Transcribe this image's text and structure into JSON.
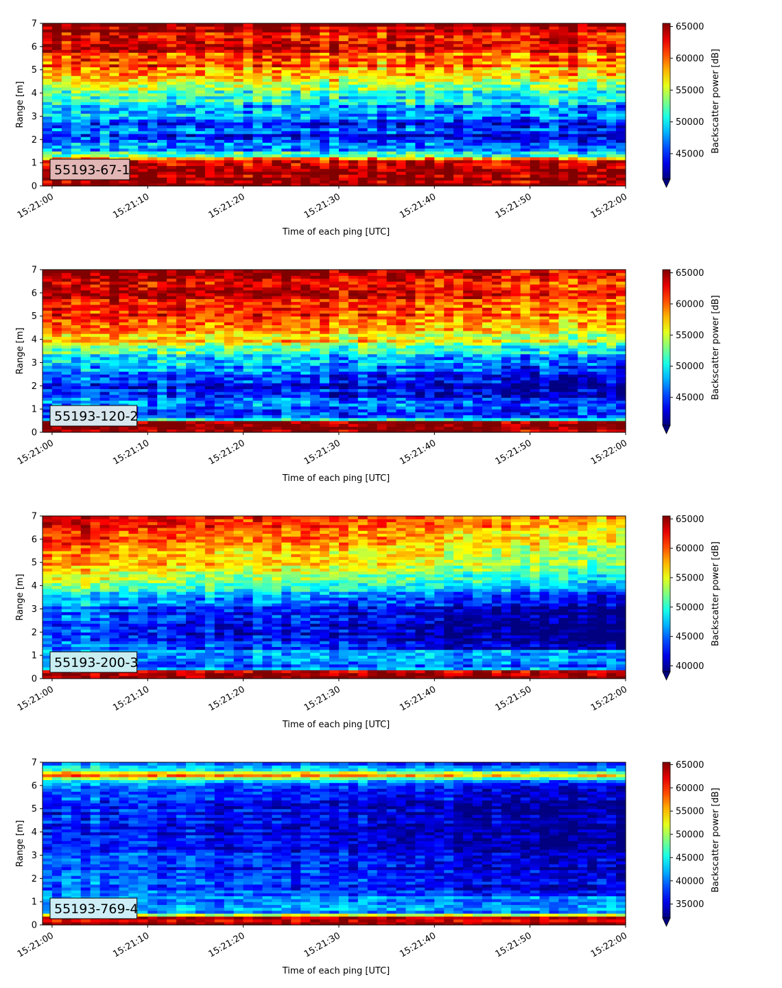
{
  "chart_data": [
    {
      "type": "heatmap",
      "label": "55193-67-1",
      "xlabel": "Time of each ping [UTC]",
      "ylabel": "Range [m]",
      "colorbar_label": "Backscatter power [dB]",
      "colormap": "jet",
      "x_range": [
        "15:20:59",
        "15:22:00"
      ],
      "x_ticks": [
        "15:21:00",
        "15:21:10",
        "15:21:20",
        "15:21:30",
        "15:21:40",
        "15:21:50",
        "15:22:00"
      ],
      "y_range": [
        0,
        7
      ],
      "y_ticks": [
        0,
        1,
        2,
        3,
        4,
        5,
        6,
        7
      ],
      "color_range": [
        41000,
        65500
      ],
      "colorbar_ticks": [
        45000,
        50000,
        55000,
        60000,
        65000
      ],
      "colorbar_extend": "min",
      "label_box_color": "#e3b6b6",
      "profile": [
        {
          "range": 0.0,
          "value": 65500
        },
        {
          "range": 0.25,
          "value": 65500
        },
        {
          "range": 0.5,
          "value": 64500
        },
        {
          "range": 0.8,
          "value": 65500
        },
        {
          "range": 1.1,
          "value": 64000
        },
        {
          "range": 1.3,
          "value": 52000
        },
        {
          "range": 2.0,
          "value": 45000
        },
        {
          "range": 2.7,
          "value": 46500
        },
        {
          "range": 3.5,
          "value": 49500
        },
        {
          "range": 4.3,
          "value": 55000
        },
        {
          "range": 5.0,
          "value": 60000
        },
        {
          "range": 6.0,
          "value": 63000
        },
        {
          "range": 7.0,
          "value": 65000
        }
      ],
      "trend_db_per_min": -1500,
      "noise_db": 3800
    },
    {
      "type": "heatmap",
      "label": "55193-120-2",
      "xlabel": "Time of each ping [UTC]",
      "ylabel": "Range [m]",
      "colorbar_label": "Backscatter power [dB]",
      "colormap": "jet",
      "x_range": [
        "15:20:59",
        "15:22:00"
      ],
      "x_ticks": [
        "15:21:00",
        "15:21:10",
        "15:21:20",
        "15:21:30",
        "15:21:40",
        "15:21:50",
        "15:22:00"
      ],
      "y_range": [
        0,
        7
      ],
      "y_ticks": [
        0,
        1,
        2,
        3,
        4,
        5,
        6,
        7
      ],
      "color_range": [
        40500,
        65500
      ],
      "colorbar_ticks": [
        45000,
        50000,
        55000,
        60000,
        65000
      ],
      "colorbar_extend": "min",
      "label_box_color": "#d8e6ee",
      "profile": [
        {
          "range": 0.0,
          "value": 65500
        },
        {
          "range": 0.45,
          "value": 65000
        },
        {
          "range": 0.6,
          "value": 44000
        },
        {
          "range": 1.2,
          "value": 47000
        },
        {
          "range": 2.0,
          "value": 44500
        },
        {
          "range": 3.0,
          "value": 49000
        },
        {
          "range": 4.0,
          "value": 58000
        },
        {
          "range": 5.0,
          "value": 62000
        },
        {
          "range": 6.0,
          "value": 64000
        },
        {
          "range": 7.0,
          "value": 65500
        }
      ],
      "trend_db_per_min": -3500,
      "noise_db": 3600
    },
    {
      "type": "heatmap",
      "label": "55193-200-3",
      "xlabel": "Time of each ping [UTC]",
      "ylabel": "Range [m]",
      "colorbar_label": "Backscatter power [dB]",
      "colormap": "jet",
      "x_range": [
        "15:20:59",
        "15:22:00"
      ],
      "x_ticks": [
        "15:21:00",
        "15:21:10",
        "15:21:20",
        "15:21:30",
        "15:21:40",
        "15:21:50",
        "15:22:00"
      ],
      "y_range": [
        0,
        7
      ],
      "y_ticks": [
        0,
        1,
        2,
        3,
        4,
        5,
        6,
        7
      ],
      "color_range": [
        39000,
        65500
      ],
      "colorbar_ticks": [
        40000,
        45000,
        50000,
        55000,
        60000,
        65000
      ],
      "colorbar_extend": "min",
      "label_box_color": "#c8eef2",
      "profile": [
        {
          "range": 0.0,
          "value": 65500
        },
        {
          "range": 0.3,
          "value": 64500
        },
        {
          "range": 0.45,
          "value": 45000
        },
        {
          "range": 1.0,
          "value": 47000
        },
        {
          "range": 2.0,
          "value": 43500
        },
        {
          "range": 3.0,
          "value": 45500
        },
        {
          "range": 4.0,
          "value": 53000
        },
        {
          "range": 5.0,
          "value": 59000
        },
        {
          "range": 6.0,
          "value": 61000
        },
        {
          "range": 7.0,
          "value": 65000
        }
      ],
      "trend_db_per_min": -6500,
      "noise_db": 3200
    },
    {
      "type": "heatmap",
      "label": "55193-769-4",
      "xlabel": "Time of each ping [UTC]",
      "ylabel": "Range [m]",
      "colorbar_label": "Backscatter power [dB]",
      "colormap": "jet",
      "x_range": [
        "15:20:59",
        "15:22:00"
      ],
      "x_ticks": [
        "15:21:00",
        "15:21:10",
        "15:21:20",
        "15:21:30",
        "15:21:40",
        "15:21:50",
        "15:22:00"
      ],
      "y_range": [
        0,
        7
      ],
      "y_ticks": [
        0,
        1,
        2,
        3,
        4,
        5,
        6,
        7
      ],
      "color_range": [
        32000,
        65500
      ],
      "colorbar_ticks": [
        35000,
        40000,
        45000,
        50000,
        55000,
        60000,
        65000
      ],
      "colorbar_extend": "min",
      "label_box_color": "#cdeef6",
      "profile": [
        {
          "range": 0.0,
          "value": 64000
        },
        {
          "range": 0.35,
          "value": 63000
        },
        {
          "range": 0.5,
          "value": 41000
        },
        {
          "range": 1.5,
          "value": 40000
        },
        {
          "range": 3.0,
          "value": 38000
        },
        {
          "range": 5.0,
          "value": 37500
        },
        {
          "range": 6.1,
          "value": 40000
        },
        {
          "range": 6.45,
          "value": 60000
        },
        {
          "range": 6.7,
          "value": 44000
        },
        {
          "range": 7.0,
          "value": 42000
        }
      ],
      "trend_db_per_min": -5000,
      "noise_db": 3400
    }
  ]
}
